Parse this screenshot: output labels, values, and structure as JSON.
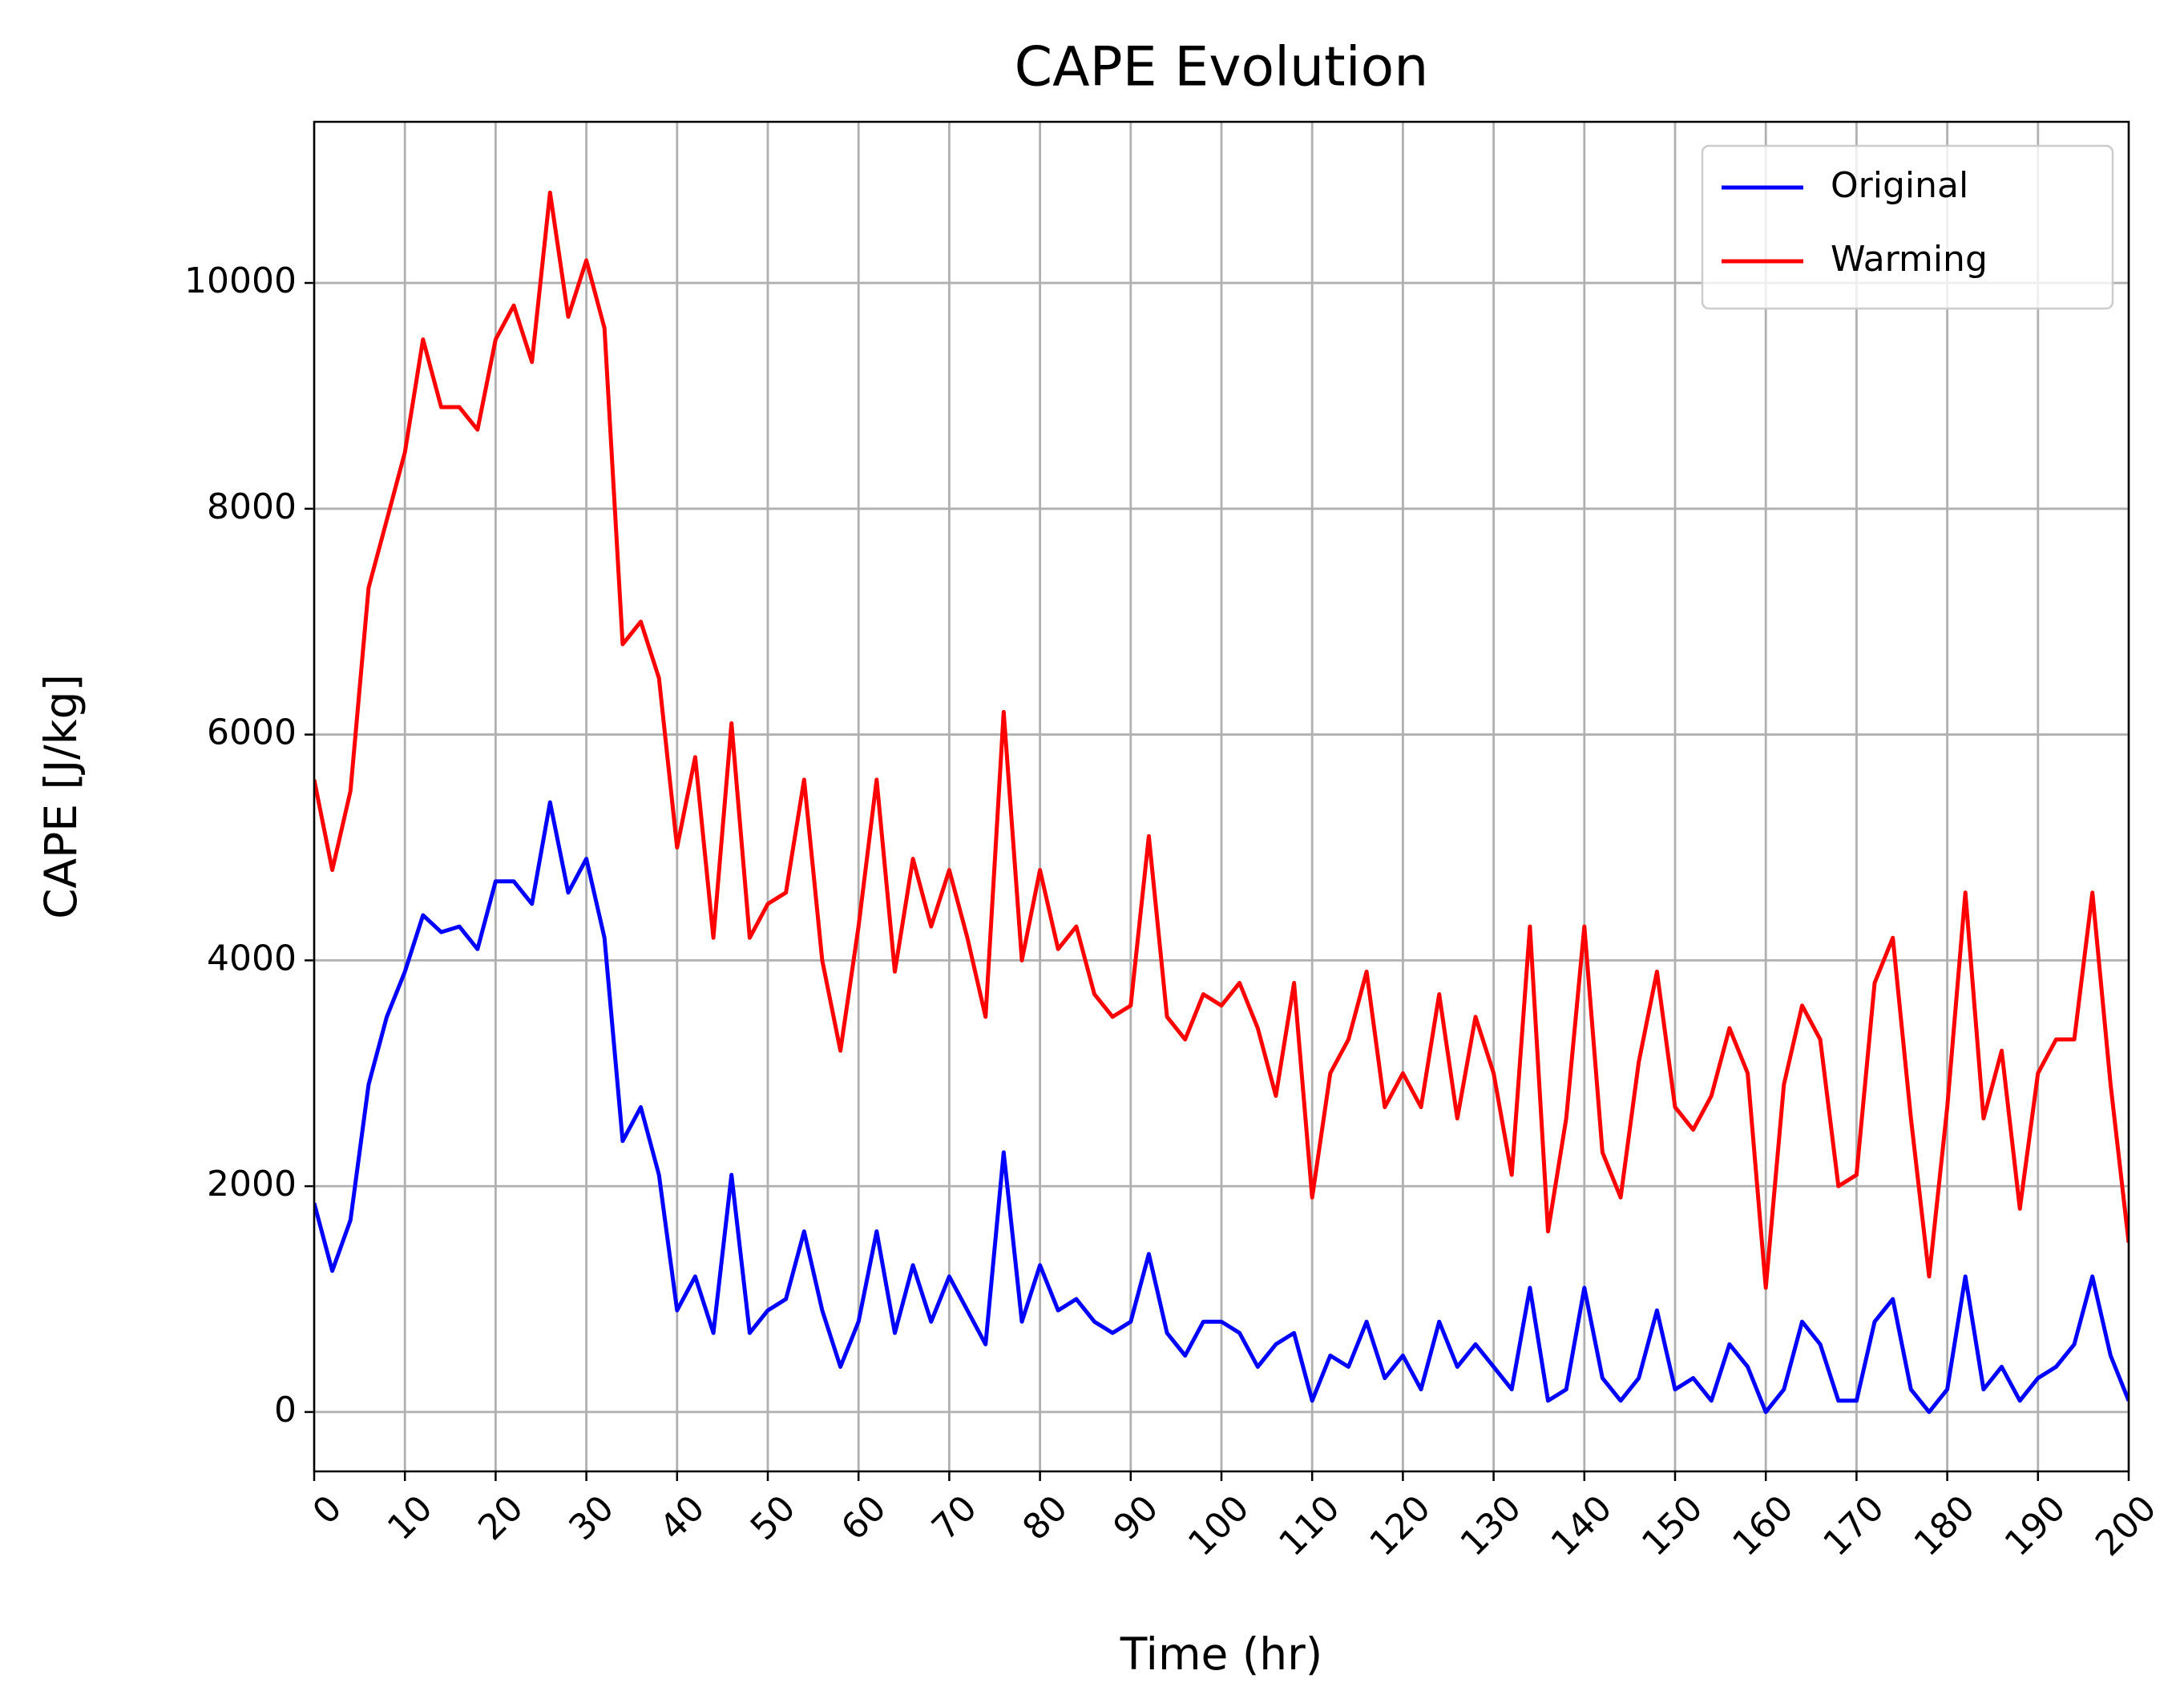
{
  "chart_data": {
    "type": "line",
    "title": "CAPE Evolution",
    "xlabel": "Time (hr)",
    "ylabel": "CAPE [J/kg]",
    "x": [
      0,
      2,
      4,
      6,
      8,
      10,
      12,
      14,
      16,
      18,
      20,
      22,
      24,
      26,
      28,
      30,
      32,
      34,
      36,
      38,
      40,
      42,
      44,
      46,
      48,
      50,
      52,
      54,
      56,
      58,
      60,
      62,
      64,
      66,
      68,
      70,
      72,
      74,
      76,
      78,
      80,
      82,
      84,
      86,
      88,
      90,
      92,
      94,
      96,
      98,
      100,
      102,
      104,
      106,
      108,
      110,
      112,
      114,
      116,
      118,
      120,
      122,
      124,
      126,
      128,
      130,
      132,
      134,
      136,
      138,
      140,
      142,
      144,
      146,
      148,
      150,
      152,
      154,
      156,
      158,
      160,
      162,
      164,
      166,
      168,
      170,
      172,
      174,
      176,
      178,
      180,
      182,
      184,
      186,
      188,
      190,
      192,
      194,
      196,
      198,
      200
    ],
    "series": [
      {
        "name": "Original",
        "color": "#0000ff",
        "values": [
          1850,
          1250,
          1700,
          2900,
          3500,
          3900,
          4400,
          4250,
          4300,
          4100,
          4700,
          4700,
          4500,
          5400,
          4600,
          4900,
          4200,
          2400,
          2700,
          2100,
          900,
          1200,
          700,
          2100,
          700,
          900,
          1000,
          1600,
          900,
          400,
          800,
          1600,
          700,
          1300,
          800,
          1200,
          900,
          600,
          2300,
          800,
          1300,
          900,
          1000,
          800,
          700,
          800,
          1400,
          700,
          500,
          800,
          800,
          700,
          400,
          600,
          700,
          100,
          500,
          400,
          800,
          300,
          500,
          200,
          800,
          400,
          600,
          400,
          200,
          1100,
          100,
          200,
          1100,
          300,
          100,
          300,
          900,
          200,
          300,
          100,
          600,
          400,
          0,
          200,
          800,
          600,
          100,
          100,
          800,
          1000,
          200,
          0,
          200,
          1200,
          200,
          400,
          100,
          300,
          400,
          600,
          1200,
          500,
          100
        ]
      },
      {
        "name": "Warming",
        "color": "#ff0000",
        "values": [
          5600,
          4800,
          5500,
          7300,
          7900,
          8500,
          9500,
          8900,
          8900,
          8700,
          9500,
          9800,
          9300,
          10800,
          9700,
          10200,
          9600,
          6800,
          7000,
          6500,
          5000,
          5800,
          4200,
          6100,
          4200,
          4500,
          4600,
          5600,
          4000,
          3200,
          4300,
          5600,
          3900,
          4900,
          4300,
          4800,
          4200,
          3500,
          6200,
          4000,
          4800,
          4100,
          4300,
          3700,
          3500,
          3600,
          5100,
          3500,
          3300,
          3700,
          3600,
          3800,
          3400,
          2800,
          3800,
          1900,
          3000,
          3300,
          3900,
          2700,
          3000,
          2700,
          3700,
          2600,
          3500,
          3000,
          2100,
          4300,
          1600,
          2600,
          4300,
          2300,
          1900,
          3100,
          3900,
          2700,
          2500,
          2800,
          3400,
          3000,
          1100,
          2900,
          3600,
          3300,
          2000,
          2100,
          3800,
          4200,
          2600,
          1200,
          2700,
          4600,
          2600,
          3200,
          1800,
          3000,
          3300,
          3300,
          4600,
          2900,
          1500
        ]
      }
    ],
    "xlim": [
      0,
      200
    ],
    "ylim": [
      -526,
      11427
    ],
    "xticks": [
      0,
      10,
      20,
      30,
      40,
      50,
      60,
      70,
      80,
      90,
      100,
      110,
      120,
      130,
      140,
      150,
      160,
      170,
      180,
      190,
      200
    ],
    "yticks": [
      0,
      2000,
      4000,
      6000,
      8000,
      10000
    ],
    "grid": true,
    "legend_loc": "upper right"
  }
}
